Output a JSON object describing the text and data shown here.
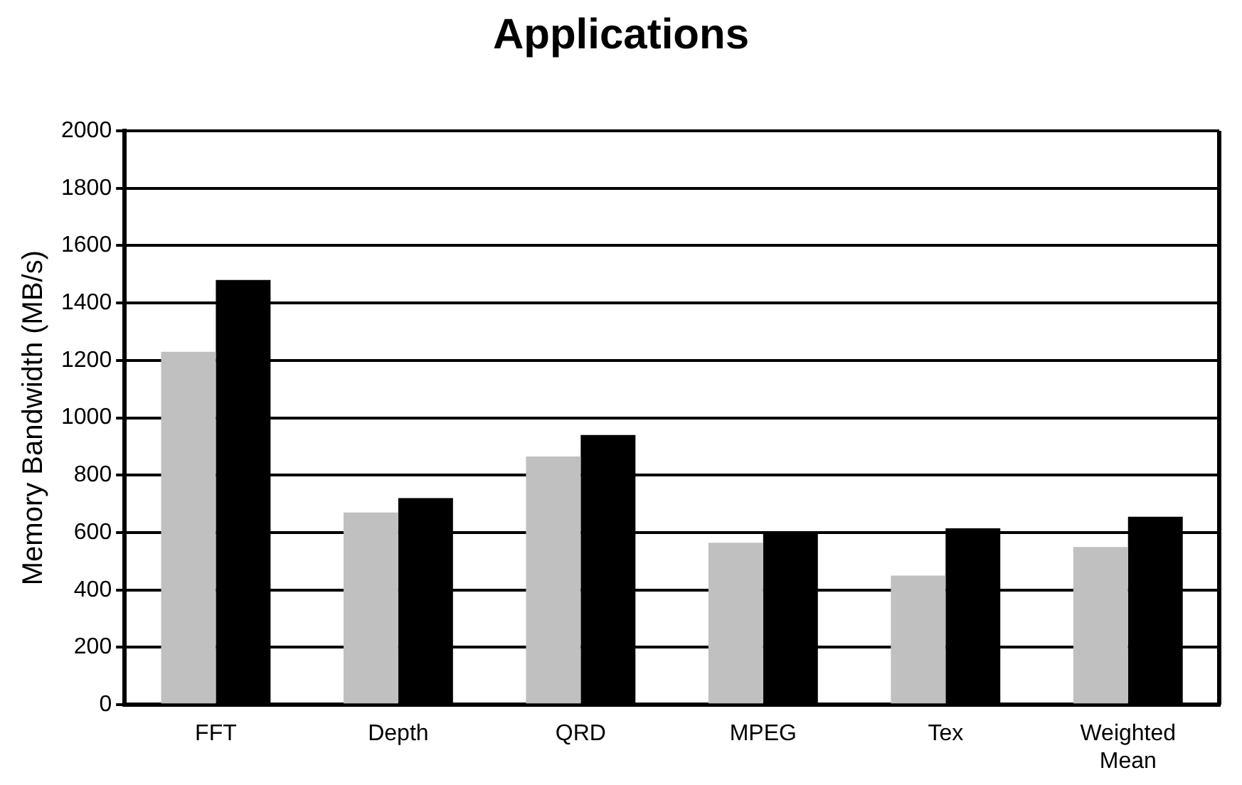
{
  "chart_data": {
    "type": "bar",
    "title": "Applications",
    "ylabel": "Memory Bandwidth (MB/s)",
    "categories": [
      "FFT",
      "Depth",
      "QRD",
      "MPEG",
      "Tex",
      "Weighted Mean"
    ],
    "series": [
      {
        "color": "#c0c0c0",
        "values": [
          1230,
          670,
          865,
          565,
          450,
          550
        ]
      },
      {
        "color": "#000000",
        "values": [
          1480,
          720,
          940,
          600,
          615,
          655
        ]
      }
    ],
    "ylim": [
      0,
      2000
    ],
    "yticks": [
      0,
      200,
      400,
      600,
      800,
      1000,
      1200,
      1400,
      1600,
      1800,
      2000
    ],
    "grid": "y",
    "legend": false
  }
}
